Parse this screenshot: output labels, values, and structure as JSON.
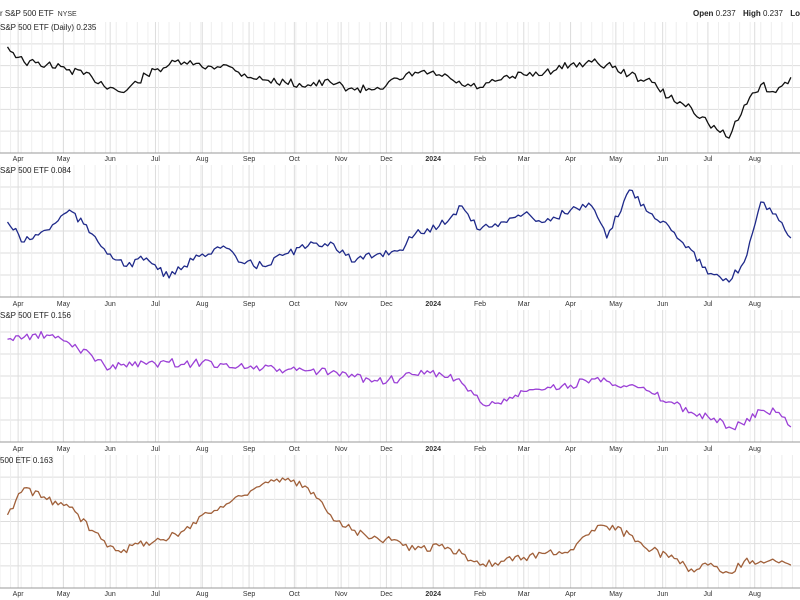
{
  "header": {
    "title": "r S&P 500 ETF",
    "exchange": "NYSE",
    "open_label": "Open",
    "open_value": "0.237",
    "high_label": "High",
    "high_value": "0.237",
    "low_label": "Lo"
  },
  "colors": {
    "grid": "#dddddd",
    "panel_border": "#999999",
    "axis_text": "#333333"
  },
  "chart_data": [
    {
      "type": "line",
      "title": "S&P 500 ETF (Daily) 0.235",
      "color": "#111111",
      "x_ticks": [
        "Apr",
        "May",
        "Jun",
        "Jul",
        "Aug",
        "Sep",
        "Oct",
        "Nov",
        "Dec",
        "2024",
        "Feb",
        "Mar",
        "Apr",
        "May",
        "Jun",
        "Jul",
        "Aug"
      ],
      "grid": true,
      "series": [
        {
          "x": [
            "2023-03-25",
            "2023-04-05",
            "2023-04-20",
            "2023-05-05",
            "2023-05-20",
            "2023-06-01",
            "2023-06-10",
            "2023-06-25",
            "2023-07-10",
            "2023-07-20",
            "2023-08-01",
            "2023-08-15",
            "2023-08-25",
            "2023-09-10",
            "2023-09-25",
            "2023-10-10",
            "2023-10-25",
            "2023-11-10",
            "2023-11-25",
            "2023-12-10",
            "2023-12-20",
            "2024-01-05",
            "2024-01-20",
            "2024-02-01",
            "2024-02-15",
            "2024-03-01",
            "2024-03-15",
            "2024-04-01",
            "2024-04-15",
            "2024-04-25",
            "2024-05-10",
            "2024-05-25",
            "2024-06-05",
            "2024-06-20",
            "2024-07-01",
            "2024-07-15",
            "2024-07-25",
            "2024-08-05",
            "2024-08-15",
            "2024-08-25"
          ],
          "values": [
            0.247,
            0.241,
            0.24,
            0.238,
            0.235,
            0.231,
            0.229,
            0.236,
            0.24,
            0.241,
            0.239,
            0.24,
            0.237,
            0.234,
            0.233,
            0.232,
            0.233,
            0.23,
            0.231,
            0.234,
            0.237,
            0.236,
            0.232,
            0.231,
            0.234,
            0.236,
            0.237,
            0.24,
            0.241,
            0.24,
            0.236,
            0.233,
            0.227,
            0.223,
            0.217,
            0.211,
            0.224,
            0.232,
            0.229,
            0.235
          ]
        }
      ]
    },
    {
      "type": "line",
      "title": "S&P 500 ETF 0.084",
      "color": "#1f2a8a",
      "x_ticks": [
        "Apr",
        "May",
        "Jun",
        "Jul",
        "Aug",
        "Sep",
        "Oct",
        "Nov",
        "Dec",
        "2024",
        "Feb",
        "Mar",
        "Apr",
        "May",
        "Jun",
        "Jul",
        "Aug"
      ],
      "grid": true,
      "series": [
        {
          "x": [
            "2023-03-25",
            "2023-04-05",
            "2023-04-20",
            "2023-05-05",
            "2023-05-20",
            "2023-06-01",
            "2023-06-10",
            "2023-06-25",
            "2023-07-10",
            "2023-07-20",
            "2023-08-01",
            "2023-08-15",
            "2023-08-25",
            "2023-09-10",
            "2023-09-25",
            "2023-10-10",
            "2023-10-25",
            "2023-11-10",
            "2023-11-25",
            "2023-12-10",
            "2023-12-20",
            "2024-01-05",
            "2024-01-20",
            "2024-02-01",
            "2024-02-15",
            "2024-03-01",
            "2024-03-15",
            "2024-04-01",
            "2024-04-15",
            "2024-04-25",
            "2024-05-10",
            "2024-05-25",
            "2024-06-05",
            "2024-06-20",
            "2024-07-01",
            "2024-07-15",
            "2024-07-25",
            "2024-08-05",
            "2024-08-15",
            "2024-08-25"
          ],
          "values": [
            0.088,
            0.083,
            0.086,
            0.091,
            0.085,
            0.08,
            0.077,
            0.079,
            0.074,
            0.077,
            0.08,
            0.082,
            0.078,
            0.077,
            0.08,
            0.082,
            0.083,
            0.078,
            0.08,
            0.081,
            0.085,
            0.087,
            0.092,
            0.086,
            0.088,
            0.09,
            0.088,
            0.091,
            0.092,
            0.084,
            0.096,
            0.09,
            0.087,
            0.081,
            0.075,
            0.073,
            0.078,
            0.093,
            0.09,
            0.084
          ]
        }
      ]
    },
    {
      "type": "line",
      "title": "S&P 500 ETF 0.156",
      "color": "#9b40d6",
      "x_ticks": [
        "Apr",
        "May",
        "Jun",
        "Jul",
        "Aug",
        "Sep",
        "Oct",
        "Nov",
        "Dec",
        "2024",
        "Feb",
        "Mar",
        "Apr",
        "May",
        "Jun",
        "Jul",
        "Aug"
      ],
      "grid": true,
      "series": [
        {
          "x": [
            "2023-03-25",
            "2023-04-05",
            "2023-04-20",
            "2023-05-05",
            "2023-05-20",
            "2023-06-01",
            "2023-06-10",
            "2023-06-25",
            "2023-07-10",
            "2023-07-20",
            "2023-08-01",
            "2023-08-15",
            "2023-08-25",
            "2023-09-10",
            "2023-09-25",
            "2023-10-10",
            "2023-10-25",
            "2023-11-10",
            "2023-11-25",
            "2023-12-10",
            "2023-12-20",
            "2024-01-05",
            "2024-01-20",
            "2024-02-01",
            "2024-02-15",
            "2024-03-01",
            "2024-03-15",
            "2024-04-01",
            "2024-04-15",
            "2024-04-25",
            "2024-05-10",
            "2024-05-25",
            "2024-06-05",
            "2024-06-20",
            "2024-07-01",
            "2024-07-15",
            "2024-07-25",
            "2024-08-05",
            "2024-08-15",
            "2024-08-25"
          ],
          "values": [
            0.198,
            0.199,
            0.2,
            0.196,
            0.19,
            0.184,
            0.186,
            0.186,
            0.187,
            0.186,
            0.187,
            0.186,
            0.185,
            0.184,
            0.183,
            0.183,
            0.182,
            0.18,
            0.178,
            0.179,
            0.181,
            0.182,
            0.177,
            0.168,
            0.167,
            0.173,
            0.174,
            0.176,
            0.179,
            0.178,
            0.176,
            0.172,
            0.168,
            0.163,
            0.161,
            0.156,
            0.157,
            0.164,
            0.163,
            0.156
          ]
        }
      ]
    },
    {
      "type": "line",
      "title": "500 ETF 0.163",
      "color": "#a0603a",
      "x_ticks": [
        "Apr",
        "May",
        "Jun",
        "Jul",
        "Aug",
        "Sep",
        "Oct",
        "Nov",
        "Dec",
        "2024",
        "Feb",
        "Mar",
        "Apr",
        "May",
        "Jun",
        "Jul",
        "Aug"
      ],
      "grid": true,
      "series": [
        {
          "x": [
            "2023-03-25",
            "2023-04-05",
            "2023-04-20",
            "2023-05-05",
            "2023-05-20",
            "2023-06-01",
            "2023-06-10",
            "2023-06-25",
            "2023-07-10",
            "2023-07-20",
            "2023-08-01",
            "2023-08-15",
            "2023-08-25",
            "2023-09-10",
            "2023-09-25",
            "2023-10-10",
            "2023-10-25",
            "2023-11-10",
            "2023-11-25",
            "2023-12-10",
            "2023-12-20",
            "2024-01-05",
            "2024-01-20",
            "2024-02-01",
            "2024-02-15",
            "2024-03-01",
            "2024-03-15",
            "2024-04-01",
            "2024-04-15",
            "2024-04-25",
            "2024-05-10",
            "2024-05-25",
            "2024-06-05",
            "2024-06-20",
            "2024-07-01",
            "2024-07-15",
            "2024-07-25",
            "2024-08-05",
            "2024-08-15",
            "2024-08-25"
          ],
          "values": [
            0.176,
            0.183,
            0.18,
            0.178,
            0.172,
            0.168,
            0.167,
            0.169,
            0.17,
            0.172,
            0.176,
            0.178,
            0.181,
            0.184,
            0.185,
            0.183,
            0.176,
            0.172,
            0.17,
            0.169,
            0.167,
            0.168,
            0.166,
            0.163,
            0.164,
            0.165,
            0.166,
            0.167,
            0.172,
            0.173,
            0.171,
            0.167,
            0.165,
            0.162,
            0.163,
            0.161,
            0.164,
            0.164,
            0.164,
            0.163
          ]
        }
      ]
    }
  ]
}
